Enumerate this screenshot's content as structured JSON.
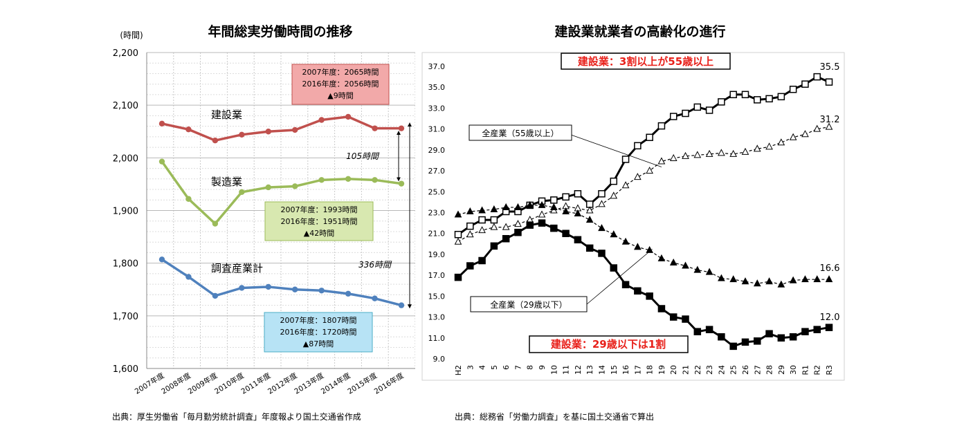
{
  "chart_data": [
    {
      "type": "line",
      "title": "年間総実労働時間の推移",
      "ylabel": "(時間)",
      "ylim": [
        1600,
        2200
      ],
      "yticks": [
        "1,600",
        "1,700",
        "1,800",
        "1,900",
        "2,000",
        "2,100",
        "2,200"
      ],
      "grid": true,
      "categories": [
        "2007年度",
        "2008年度",
        "2009年度",
        "2010年度",
        "2011年度",
        "2012年度",
        "2013年度",
        "2014年度",
        "2015年度",
        "2016年度"
      ],
      "series": [
        {
          "name": "建設業",
          "color": "#C0504D",
          "values": [
            2065,
            2054,
            2033,
            2044,
            2050,
            2053,
            2072,
            2078,
            2056,
            2056
          ]
        },
        {
          "name": "製造業",
          "color": "#9BBB59",
          "values": [
            1993,
            1922,
            1875,
            1935,
            1944,
            1946,
            1958,
            1960,
            1958,
            1951
          ]
        },
        {
          "name": "調査産業計",
          "color": "#4F81BD",
          "values": [
            1807,
            1774,
            1738,
            1753,
            1755,
            1750,
            1748,
            1742,
            1733,
            1720
          ]
        }
      ],
      "boxes": [
        {
          "lines": [
            "2007年度：2065時間",
            "2016年度：2056時間",
            "▲9時間"
          ],
          "fill": "#F2A9A9",
          "stroke": "#C0504D"
        },
        {
          "lines": [
            "2007年度：1993時間",
            "2016年度：1951時間",
            "▲42時間"
          ],
          "fill": "#D8E8B0",
          "stroke": "#9BBB59"
        },
        {
          "lines": [
            "2007年度：1807時間",
            "2016年度：1720時間",
            "▲87時間"
          ],
          "fill": "#B7E3F5",
          "stroke": "#4BACC6"
        }
      ],
      "gap_labels": [
        "105時間",
        "336時間"
      ],
      "source": "出典：厚生労働省「毎月勤労統計調査」年度報より国土交通省作成"
    },
    {
      "type": "line",
      "title": "建設業就業者の高齢化の進行",
      "ylim": [
        9.0,
        37.0
      ],
      "yticks": [
        "9.0",
        "11.0",
        "13.0",
        "15.0",
        "17.0",
        "19.0",
        "21.0",
        "23.0",
        "25.0",
        "27.0",
        "29.0",
        "31.0",
        "33.0",
        "35.0",
        "37.0"
      ],
      "categories": [
        "H2",
        "3",
        "4",
        "5",
        "6",
        "7",
        "8",
        "9",
        "10",
        "11",
        "12",
        "13",
        "14",
        "15",
        "16",
        "17",
        "18",
        "19",
        "20",
        "21",
        "22",
        "23",
        "24",
        "25",
        "26",
        "27",
        "28",
        "29",
        "30",
        "R1",
        "R2",
        "R3"
      ],
      "series": [
        {
          "name": "建設業：3割以上が55歳以上",
          "style": "solid-open-square",
          "values": [
            20.9,
            21.7,
            22.3,
            22.3,
            23.1,
            23.1,
            23.7,
            24.1,
            24.2,
            24.5,
            24.8,
            23.8,
            24.8,
            26.0,
            28.1,
            29.4,
            30.2,
            31.3,
            32.2,
            32.5,
            33.1,
            32.8,
            33.6,
            34.3,
            34.3,
            33.8,
            33.9,
            34.1,
            34.8,
            35.3,
            36.0,
            35.5
          ]
        },
        {
          "name": "全産業（55歳以上）",
          "style": "dashed-open-triangle",
          "values": [
            20.2,
            20.9,
            21.3,
            21.6,
            21.6,
            21.9,
            22.3,
            22.8,
            23.2,
            23.6,
            23.4,
            23.2,
            23.8,
            24.6,
            25.6,
            26.4,
            27.0,
            27.9,
            28.2,
            28.4,
            28.5,
            28.6,
            28.7,
            28.6,
            28.8,
            29.1,
            29.3,
            29.7,
            30.2,
            30.5,
            31.0,
            31.2
          ]
        },
        {
          "name": "全産業（29歳以下）",
          "style": "dashed-filled-triangle",
          "values": [
            22.8,
            23.1,
            23.2,
            23.3,
            23.5,
            23.5,
            23.7,
            23.7,
            23.5,
            23.1,
            22.9,
            22.3,
            21.5,
            20.9,
            20.2,
            19.7,
            19.4,
            18.6,
            18.2,
            17.9,
            17.5,
            17.3,
            16.7,
            16.6,
            16.4,
            16.2,
            16.4,
            16.1,
            16.5,
            16.6,
            16.6,
            16.6
          ]
        },
        {
          "name": "建設業：29歳以下は1割",
          "style": "solid-filled-square",
          "values": [
            16.8,
            17.9,
            18.4,
            19.8,
            20.5,
            21.1,
            21.8,
            22.0,
            21.5,
            21.0,
            20.4,
            19.6,
            19.1,
            17.7,
            16.1,
            15.5,
            15.0,
            13.8,
            13.0,
            12.8,
            11.6,
            11.8,
            11.1,
            10.2,
            10.6,
            10.7,
            11.4,
            11.0,
            11.1,
            11.6,
            11.8,
            12.0
          ]
        }
      ],
      "labels": {
        "top_box": "建設業：3割以上が55歳以上",
        "bottom_box": "建設業：29歳以下は1割",
        "callout_55": "全産業（55歳以上）",
        "callout_29": "全産業（29歳以下）",
        "end_values": [
          "35.5",
          "31.2",
          "16.6",
          "12.0"
        ],
        "box_color": "#E8201A"
      },
      "source": "出典：総務省「労働力調査」を基に国土交通省で算出"
    }
  ]
}
